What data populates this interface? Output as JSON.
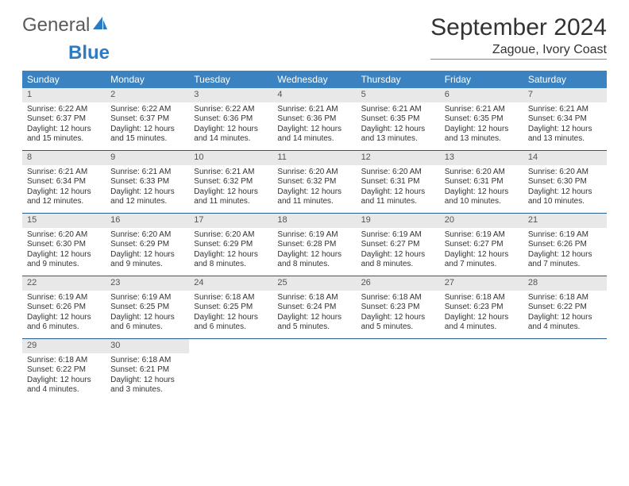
{
  "logo": {
    "text1": "General",
    "text2": "Blue"
  },
  "title": "September 2024",
  "location": "Zagoue, Ivory Coast",
  "colors": {
    "header_bg": "#3b83c0",
    "header_text": "#ffffff",
    "daynum_bg": "#e8e8e8",
    "row_border": "#2a5a8a",
    "body_text": "#333333",
    "logo_gray": "#5a5a5a",
    "logo_blue": "#2d7cc1"
  },
  "day_headers": [
    "Sunday",
    "Monday",
    "Tuesday",
    "Wednesday",
    "Thursday",
    "Friday",
    "Saturday"
  ],
  "weeks": [
    [
      {
        "n": "1",
        "sr": "Sunrise: 6:22 AM",
        "ss": "Sunset: 6:37 PM",
        "d1": "Daylight: 12 hours",
        "d2": "and 15 minutes."
      },
      {
        "n": "2",
        "sr": "Sunrise: 6:22 AM",
        "ss": "Sunset: 6:37 PM",
        "d1": "Daylight: 12 hours",
        "d2": "and 15 minutes."
      },
      {
        "n": "3",
        "sr": "Sunrise: 6:22 AM",
        "ss": "Sunset: 6:36 PM",
        "d1": "Daylight: 12 hours",
        "d2": "and 14 minutes."
      },
      {
        "n": "4",
        "sr": "Sunrise: 6:21 AM",
        "ss": "Sunset: 6:36 PM",
        "d1": "Daylight: 12 hours",
        "d2": "and 14 minutes."
      },
      {
        "n": "5",
        "sr": "Sunrise: 6:21 AM",
        "ss": "Sunset: 6:35 PM",
        "d1": "Daylight: 12 hours",
        "d2": "and 13 minutes."
      },
      {
        "n": "6",
        "sr": "Sunrise: 6:21 AM",
        "ss": "Sunset: 6:35 PM",
        "d1": "Daylight: 12 hours",
        "d2": "and 13 minutes."
      },
      {
        "n": "7",
        "sr": "Sunrise: 6:21 AM",
        "ss": "Sunset: 6:34 PM",
        "d1": "Daylight: 12 hours",
        "d2": "and 13 minutes."
      }
    ],
    [
      {
        "n": "8",
        "sr": "Sunrise: 6:21 AM",
        "ss": "Sunset: 6:34 PM",
        "d1": "Daylight: 12 hours",
        "d2": "and 12 minutes."
      },
      {
        "n": "9",
        "sr": "Sunrise: 6:21 AM",
        "ss": "Sunset: 6:33 PM",
        "d1": "Daylight: 12 hours",
        "d2": "and 12 minutes."
      },
      {
        "n": "10",
        "sr": "Sunrise: 6:21 AM",
        "ss": "Sunset: 6:32 PM",
        "d1": "Daylight: 12 hours",
        "d2": "and 11 minutes."
      },
      {
        "n": "11",
        "sr": "Sunrise: 6:20 AM",
        "ss": "Sunset: 6:32 PM",
        "d1": "Daylight: 12 hours",
        "d2": "and 11 minutes."
      },
      {
        "n": "12",
        "sr": "Sunrise: 6:20 AM",
        "ss": "Sunset: 6:31 PM",
        "d1": "Daylight: 12 hours",
        "d2": "and 11 minutes."
      },
      {
        "n": "13",
        "sr": "Sunrise: 6:20 AM",
        "ss": "Sunset: 6:31 PM",
        "d1": "Daylight: 12 hours",
        "d2": "and 10 minutes."
      },
      {
        "n": "14",
        "sr": "Sunrise: 6:20 AM",
        "ss": "Sunset: 6:30 PM",
        "d1": "Daylight: 12 hours",
        "d2": "and 10 minutes."
      }
    ],
    [
      {
        "n": "15",
        "sr": "Sunrise: 6:20 AM",
        "ss": "Sunset: 6:30 PM",
        "d1": "Daylight: 12 hours",
        "d2": "and 9 minutes."
      },
      {
        "n": "16",
        "sr": "Sunrise: 6:20 AM",
        "ss": "Sunset: 6:29 PM",
        "d1": "Daylight: 12 hours",
        "d2": "and 9 minutes."
      },
      {
        "n": "17",
        "sr": "Sunrise: 6:20 AM",
        "ss": "Sunset: 6:29 PM",
        "d1": "Daylight: 12 hours",
        "d2": "and 8 minutes."
      },
      {
        "n": "18",
        "sr": "Sunrise: 6:19 AM",
        "ss": "Sunset: 6:28 PM",
        "d1": "Daylight: 12 hours",
        "d2": "and 8 minutes."
      },
      {
        "n": "19",
        "sr": "Sunrise: 6:19 AM",
        "ss": "Sunset: 6:27 PM",
        "d1": "Daylight: 12 hours",
        "d2": "and 8 minutes."
      },
      {
        "n": "20",
        "sr": "Sunrise: 6:19 AM",
        "ss": "Sunset: 6:27 PM",
        "d1": "Daylight: 12 hours",
        "d2": "and 7 minutes."
      },
      {
        "n": "21",
        "sr": "Sunrise: 6:19 AM",
        "ss": "Sunset: 6:26 PM",
        "d1": "Daylight: 12 hours",
        "d2": "and 7 minutes."
      }
    ],
    [
      {
        "n": "22",
        "sr": "Sunrise: 6:19 AM",
        "ss": "Sunset: 6:26 PM",
        "d1": "Daylight: 12 hours",
        "d2": "and 6 minutes."
      },
      {
        "n": "23",
        "sr": "Sunrise: 6:19 AM",
        "ss": "Sunset: 6:25 PM",
        "d1": "Daylight: 12 hours",
        "d2": "and 6 minutes."
      },
      {
        "n": "24",
        "sr": "Sunrise: 6:18 AM",
        "ss": "Sunset: 6:25 PM",
        "d1": "Daylight: 12 hours",
        "d2": "and 6 minutes."
      },
      {
        "n": "25",
        "sr": "Sunrise: 6:18 AM",
        "ss": "Sunset: 6:24 PM",
        "d1": "Daylight: 12 hours",
        "d2": "and 5 minutes."
      },
      {
        "n": "26",
        "sr": "Sunrise: 6:18 AM",
        "ss": "Sunset: 6:23 PM",
        "d1": "Daylight: 12 hours",
        "d2": "and 5 minutes."
      },
      {
        "n": "27",
        "sr": "Sunrise: 6:18 AM",
        "ss": "Sunset: 6:23 PM",
        "d1": "Daylight: 12 hours",
        "d2": "and 4 minutes."
      },
      {
        "n": "28",
        "sr": "Sunrise: 6:18 AM",
        "ss": "Sunset: 6:22 PM",
        "d1": "Daylight: 12 hours",
        "d2": "and 4 minutes."
      }
    ],
    [
      {
        "n": "29",
        "sr": "Sunrise: 6:18 AM",
        "ss": "Sunset: 6:22 PM",
        "d1": "Daylight: 12 hours",
        "d2": "and 4 minutes."
      },
      {
        "n": "30",
        "sr": "Sunrise: 6:18 AM",
        "ss": "Sunset: 6:21 PM",
        "d1": "Daylight: 12 hours",
        "d2": "and 3 minutes."
      },
      null,
      null,
      null,
      null,
      null
    ]
  ]
}
